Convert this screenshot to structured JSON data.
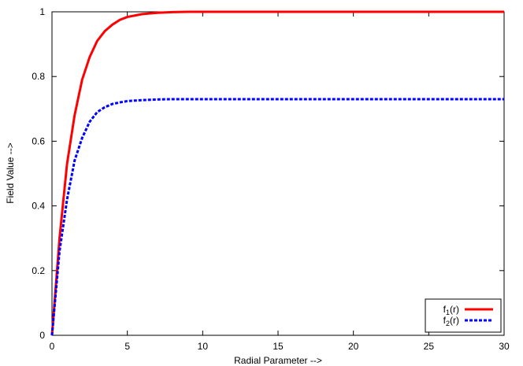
{
  "chart_data": {
    "type": "line",
    "xlabel": "Radial Parameter -->",
    "ylabel": "Field Value -->",
    "xlim": [
      0,
      30
    ],
    "ylim": [
      0,
      1
    ],
    "xticks": [
      "0",
      "5",
      "10",
      "15",
      "20",
      "25",
      "30"
    ],
    "yticks": [
      "0",
      "0.2",
      "0.4",
      "0.6",
      "0.8",
      "1"
    ],
    "grid": false,
    "legend_position": "bottom-right",
    "series": [
      {
        "name_base": "f",
        "name_sub": "1",
        "name_rest": "(r)",
        "color": "#ff0000",
        "style": "solid",
        "x": [
          0,
          0.5,
          1,
          1.5,
          2,
          2.5,
          3,
          3.5,
          4,
          4.5,
          5,
          6,
          7,
          8,
          9,
          10,
          11,
          12,
          15,
          20,
          25,
          30
        ],
        "y": [
          0,
          0.3,
          0.53,
          0.68,
          0.79,
          0.86,
          0.91,
          0.94,
          0.96,
          0.975,
          0.984,
          0.993,
          0.997,
          0.999,
          1.0,
          1.0,
          1.0,
          1.0,
          1.0,
          1.0,
          1.0,
          1.0
        ]
      },
      {
        "name_base": "f",
        "name_sub": "2",
        "name_rest": "(r)",
        "color": "#0000ff",
        "style": "dashed",
        "x": [
          0,
          0.5,
          1,
          1.5,
          2,
          2.5,
          3,
          3.5,
          4,
          4.5,
          5,
          6,
          7,
          8,
          9,
          10,
          12,
          15,
          20,
          25,
          30
        ],
        "y": [
          0,
          0.26,
          0.42,
          0.54,
          0.61,
          0.66,
          0.69,
          0.705,
          0.715,
          0.72,
          0.724,
          0.727,
          0.729,
          0.73,
          0.73,
          0.73,
          0.73,
          0.73,
          0.73,
          0.73,
          0.73
        ]
      }
    ]
  }
}
